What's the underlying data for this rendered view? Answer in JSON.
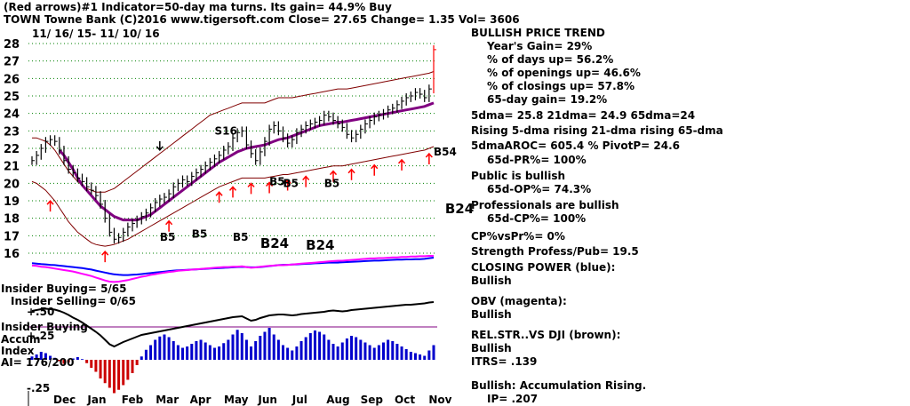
{
  "header": {
    "line1": "(Red arrows)#1 Indicator=50-day ma turns. Its gain= 44.9% Buy",
    "line2": "TOWN   Towne Bank  (C)2016 www.tigersoft.com     Close=  27.65  Change= 1.35 Vol=  3606",
    "date_range": "11/ 16/ 15-  11/ 10/ 16"
  },
  "chart_data": {
    "type": "line",
    "title": "TOWN   Towne Bank",
    "ylim": [
      16,
      28
    ],
    "y_ticks": [
      "28",
      "27",
      "26",
      "25",
      "24",
      "23",
      "22",
      "21",
      "20",
      "19",
      "18",
      "17",
      "16"
    ],
    "x_ticks": [
      "Dec",
      "Jan",
      "Feb",
      "Mar",
      "Apr",
      "May",
      "Jun",
      "Jul",
      "Aug",
      "Sep",
      "Oct",
      "Nov"
    ],
    "price_closes": [
      21.3,
      21.6,
      22.0,
      22.4,
      22.5,
      22.4,
      21.9,
      21.3,
      20.8,
      20.6,
      20.3,
      20.1,
      19.8,
      19.6,
      19.3,
      18.8,
      18.0,
      17.2,
      16.8,
      16.9,
      17.2,
      17.5,
      17.7,
      17.9,
      18.1,
      18.3,
      18.6,
      18.9,
      19.1,
      19.2,
      19.4,
      19.8,
      20.0,
      20.2,
      20.1,
      20.4,
      20.6,
      20.8,
      21.0,
      21.2,
      21.4,
      21.6,
      21.9,
      22.1,
      22.6,
      22.9,
      23.0,
      22.2,
      21.7,
      21.3,
      21.8,
      22.4,
      23.1,
      23.3,
      23.0,
      22.6,
      22.3,
      22.5,
      22.9,
      23.1,
      23.3,
      23.4,
      23.5,
      23.6,
      23.9,
      23.8,
      23.6,
      23.4,
      23.2,
      22.8,
      22.6,
      22.8,
      23.1,
      23.4,
      23.6,
      23.8,
      23.9,
      24.0,
      24.2,
      24.3,
      24.5,
      24.7,
      24.9,
      25.0,
      25.2,
      25.1,
      24.9,
      25.4,
      27.65
    ],
    "ma65": [
      null,
      null,
      null,
      null,
      null,
      null,
      21.9,
      21.6,
      21.2,
      20.8,
      20.3,
      19.9,
      19.6,
      19.3,
      19.0,
      18.7,
      18.5,
      18.3,
      18.1,
      18.0,
      17.9,
      17.9,
      17.9,
      17.9,
      18.0,
      18.1,
      18.2,
      18.4,
      18.6,
      18.8,
      19.0,
      19.2,
      19.4,
      19.6,
      19.8,
      20.0,
      20.2,
      20.4,
      20.6,
      20.8,
      21.0,
      21.2,
      21.35,
      21.5,
      21.65,
      21.8,
      21.9,
      22.0,
      22.05,
      22.1,
      22.15,
      22.2,
      22.3,
      22.4,
      22.5,
      22.55,
      22.6,
      22.7,
      22.8,
      22.9,
      23.0,
      23.1,
      23.2,
      23.3,
      23.35,
      23.4,
      23.45,
      23.5,
      23.5,
      23.55,
      23.6,
      23.65,
      23.7,
      23.75,
      23.8,
      23.85,
      23.9,
      23.95,
      24.0,
      24.05,
      24.1,
      24.15,
      24.2,
      24.25,
      24.3,
      24.35,
      24.4,
      24.5,
      24.6
    ],
    "band_upper": [
      22.6,
      22.6,
      22.5,
      22.4,
      22.2,
      21.9,
      21.5,
      21.1,
      20.7,
      20.4,
      20.1,
      19.9,
      19.7,
      19.6,
      19.5,
      19.5,
      19.5,
      19.6,
      19.7,
      19.9,
      20.1,
      20.3,
      20.5,
      20.7,
      20.9,
      21.1,
      21.3,
      21.5,
      21.7,
      21.9,
      22.1,
      22.3,
      22.5,
      22.7,
      22.9,
      23.1,
      23.3,
      23.5,
      23.7,
      23.9,
      24.0,
      24.1,
      24.2,
      24.3,
      24.4,
      24.5,
      24.6,
      24.6,
      24.6,
      24.6,
      24.6,
      24.6,
      24.7,
      24.8,
      24.9,
      24.9,
      24.9,
      24.9,
      24.95,
      25.0,
      25.05,
      25.1,
      25.15,
      25.2,
      25.25,
      25.3,
      25.35,
      25.4,
      25.4,
      25.4,
      25.45,
      25.5,
      25.55,
      25.6,
      25.65,
      25.7,
      25.75,
      25.8,
      25.85,
      25.9,
      25.95,
      26.0,
      26.05,
      26.1,
      26.15,
      26.2,
      26.25,
      26.3,
      26.4
    ],
    "band_lower": [
      20.1,
      20.0,
      19.8,
      19.6,
      19.3,
      19.0,
      18.6,
      18.2,
      17.8,
      17.5,
      17.2,
      17.0,
      16.8,
      16.6,
      16.5,
      16.45,
      16.4,
      16.45,
      16.5,
      16.6,
      16.7,
      16.8,
      16.95,
      17.1,
      17.25,
      17.4,
      17.55,
      17.7,
      17.85,
      18.0,
      18.15,
      18.3,
      18.45,
      18.6,
      18.75,
      18.9,
      19.05,
      19.2,
      19.35,
      19.5,
      19.65,
      19.8,
      19.9,
      20.0,
      20.1,
      20.2,
      20.3,
      20.3,
      20.3,
      20.3,
      20.3,
      20.3,
      20.35,
      20.4,
      20.45,
      20.5,
      20.5,
      20.55,
      20.6,
      20.65,
      20.7,
      20.75,
      20.8,
      20.85,
      20.9,
      20.95,
      21.0,
      21.0,
      21.0,
      21.05,
      21.1,
      21.15,
      21.2,
      21.25,
      21.3,
      21.35,
      21.4,
      21.45,
      21.5,
      21.55,
      21.6,
      21.65,
      21.7,
      21.75,
      21.8,
      21.85,
      21.9,
      22.0,
      22.1
    ],
    "closing_power": [
      0.78,
      0.76,
      0.74,
      0.73,
      0.71,
      0.7,
      0.68,
      0.66,
      0.64,
      0.62,
      0.6,
      0.58,
      0.55,
      0.52,
      0.48,
      0.44,
      0.4,
      0.36,
      0.33,
      0.31,
      0.3,
      0.3,
      0.31,
      0.32,
      0.34,
      0.36,
      0.38,
      0.4,
      0.42,
      0.44,
      0.46,
      0.48,
      0.49,
      0.5,
      0.51,
      0.52,
      0.53,
      0.54,
      0.55,
      0.56,
      0.57,
      0.58,
      0.59,
      0.6,
      0.61,
      0.62,
      0.63,
      0.62,
      0.61,
      0.61,
      0.62,
      0.64,
      0.66,
      0.68,
      0.7,
      0.71,
      0.71,
      0.72,
      0.73,
      0.74,
      0.75,
      0.76,
      0.77,
      0.78,
      0.79,
      0.8,
      0.8,
      0.8,
      0.81,
      0.82,
      0.83,
      0.84,
      0.85,
      0.86,
      0.87,
      0.88,
      0.88,
      0.89,
      0.9,
      0.91,
      0.92,
      0.92,
      0.93,
      0.93,
      0.94,
      0.94,
      0.95,
      0.98,
      1.0
    ],
    "obv": [
      0.74,
      0.73,
      0.71,
      0.7,
      0.68,
      0.66,
      0.64,
      0.62,
      0.6,
      0.58,
      0.55,
      0.52,
      0.49,
      0.46,
      0.42,
      0.38,
      0.34,
      0.31,
      0.3,
      0.31,
      0.33,
      0.35,
      0.38,
      0.41,
      0.44,
      0.46,
      0.49,
      0.51,
      0.53,
      0.55,
      0.57,
      0.58,
      0.6,
      0.61,
      0.62,
      0.63,
      0.64,
      0.65,
      0.66,
      0.67,
      0.68,
      0.69,
      0.7,
      0.7,
      0.71,
      0.71,
      0.72,
      0.7,
      0.68,
      0.69,
      0.71,
      0.72,
      0.73,
      0.74,
      0.75,
      0.75,
      0.76,
      0.77,
      0.78,
      0.79,
      0.8,
      0.81,
      0.82,
      0.83,
      0.84,
      0.85,
      0.86,
      0.87,
      0.87,
      0.88,
      0.89,
      0.9,
      0.91,
      0.92,
      0.93,
      0.93,
      0.94,
      0.94,
      0.95,
      0.96,
      0.96,
      0.97,
      0.97,
      0.98,
      0.98,
      0.99,
      0.99,
      1.0,
      1.0
    ],
    "rel_strength": [
      0.8,
      0.82,
      0.84,
      0.85,
      0.84,
      0.83,
      0.8,
      0.76,
      0.71,
      0.65,
      0.6,
      0.54,
      0.47,
      0.4,
      0.33,
      0.25,
      0.15,
      0.05,
      0.0,
      0.05,
      0.1,
      0.14,
      0.18,
      0.22,
      0.26,
      0.28,
      0.3,
      0.32,
      0.34,
      0.36,
      0.38,
      0.4,
      0.42,
      0.44,
      0.46,
      0.48,
      0.5,
      0.52,
      0.54,
      0.56,
      0.58,
      0.6,
      0.62,
      0.64,
      0.66,
      0.67,
      0.68,
      0.63,
      0.58,
      0.6,
      0.64,
      0.67,
      0.7,
      0.71,
      0.72,
      0.72,
      0.71,
      0.7,
      0.71,
      0.73,
      0.74,
      0.75,
      0.76,
      0.77,
      0.78,
      0.8,
      0.81,
      0.8,
      0.79,
      0.8,
      0.82,
      0.83,
      0.84,
      0.85,
      0.86,
      0.87,
      0.88,
      0.89,
      0.9,
      0.91,
      0.92,
      0.93,
      0.94,
      0.94,
      0.95,
      0.96,
      0.97,
      0.99,
      1.0
    ],
    "accum_index": [
      0.05,
      0.08,
      0.12,
      0.1,
      0.06,
      0.03,
      -0.02,
      -0.06,
      -0.04,
      0.02,
      0.04,
      0.01,
      -0.05,
      -0.12,
      -0.18,
      -0.28,
      -0.35,
      -0.42,
      -0.5,
      -0.45,
      -0.38,
      -0.3,
      -0.2,
      -0.08,
      0.05,
      0.15,
      0.22,
      0.3,
      0.35,
      0.38,
      0.34,
      0.28,
      0.22,
      0.18,
      0.2,
      0.24,
      0.28,
      0.3,
      0.26,
      0.22,
      0.18,
      0.2,
      0.25,
      0.3,
      0.38,
      0.45,
      0.4,
      0.3,
      0.2,
      0.28,
      0.36,
      0.42,
      0.48,
      0.38,
      0.3,
      0.22,
      0.18,
      0.14,
      0.2,
      0.28,
      0.34,
      0.4,
      0.44,
      0.42,
      0.38,
      0.3,
      0.24,
      0.2,
      0.26,
      0.32,
      0.36,
      0.34,
      0.3,
      0.26,
      0.22,
      0.18,
      0.22,
      0.26,
      0.3,
      0.28,
      0.24,
      0.2,
      0.16,
      0.12,
      0.1,
      0.08,
      0.06,
      0.14,
      0.22
    ],
    "accum_levels": [
      "+.50",
      "+.25",
      "-.25"
    ],
    "red_buy_arrow_days": [
      4,
      16,
      30,
      41,
      44,
      48,
      52,
      56,
      60,
      66,
      70,
      75,
      81,
      87
    ],
    "black_sell_arrow_days": [
      28
    ],
    "labels": [
      {
        "text": "B5",
        "x": 28,
        "y": 16.7,
        "size": 12
      },
      {
        "text": "B5",
        "x": 35,
        "y": 16.9,
        "size": 12
      },
      {
        "text": "B5",
        "x": 44,
        "y": 16.7,
        "size": 12
      },
      {
        "text": "B5",
        "x": 52,
        "y": 19.9,
        "size": 12
      },
      {
        "text": "B5",
        "x": 55,
        "y": 19.8,
        "size": 12
      },
      {
        "text": "B5",
        "x": 64,
        "y": 19.8,
        "size": 12
      },
      {
        "text": "B24",
        "x": 50,
        "y": 16.3,
        "size": 15
      },
      {
        "text": "B24",
        "x": 60,
        "y": 16.2,
        "size": 15
      },
      {
        "text": "B24",
        "x": 90.5,
        "y": 18.3,
        "size": 15
      },
      {
        "text": "S16",
        "x": 40,
        "y": 22.8,
        "size": 12
      },
      {
        "text": "B54",
        "x": 88,
        "y": 21.6,
        "size": 12
      }
    ]
  },
  "panel_labels": {
    "insider_buying": "Insider Buying= 5/65",
    "insider_selling": "Insider Selling= 0/65",
    "insider_buying2": "Insider Buying",
    "accum": "Accum",
    "index": "Index",
    "ai": "AI= 176/200"
  },
  "right_panel": {
    "trend_title": "BULLISH PRICE TREND",
    "years_gain": "Year's Gain= 29%",
    "days_up": "% of days up= 56.2%",
    "openings_up": "% of openings up= 46.6%",
    "closings_up": "% of closings up= 57.8%",
    "gain_65": "65-day gain= 19.2%",
    "dma": "5dma= 25.8  21dma= 24.9  65dma=24",
    "rising": "Rising 5-dma  rising 21-dma  rising 65-dma",
    "aroc": "5dmaAROC= 605.4 %  PivotP= 24.6",
    "pr65": "65d-PR%= 100%",
    "public": "Public is bullish",
    "op65": "65d-OP%= 74.3%",
    "professionals": "Professionals are bullish",
    "cp65": "65d-CP%= 100%",
    "cpvspr": "CP%vsPr%=  0%",
    "strength": "Strength Profess/Pub= 19.5",
    "closing_power_title": "CLOSING POWER (blue):",
    "closing_power_val": "Bullish",
    "obv_title": "OBV (magenta):",
    "obv_val": "Bullish",
    "relstr_title": "REL.STR..VS DJI (brown):",
    "relstr_val": "Bullish",
    "itrs": "ITRS= .139",
    "accum_rising": "Bullish: Accumulation Rising.",
    "ip": "IP=  .207"
  },
  "colors": {
    "price": "#000000",
    "ma65": "#800080",
    "bands": "#800000",
    "grid": "#008000",
    "closing_power": "#0000ff",
    "obv": "#ff00ff",
    "rel_strength": "#000000",
    "accum_pos": "#0000cc",
    "accum_neg": "#cc0000",
    "arrow_buy": "#ff0000",
    "arrow_sell": "#000000"
  }
}
